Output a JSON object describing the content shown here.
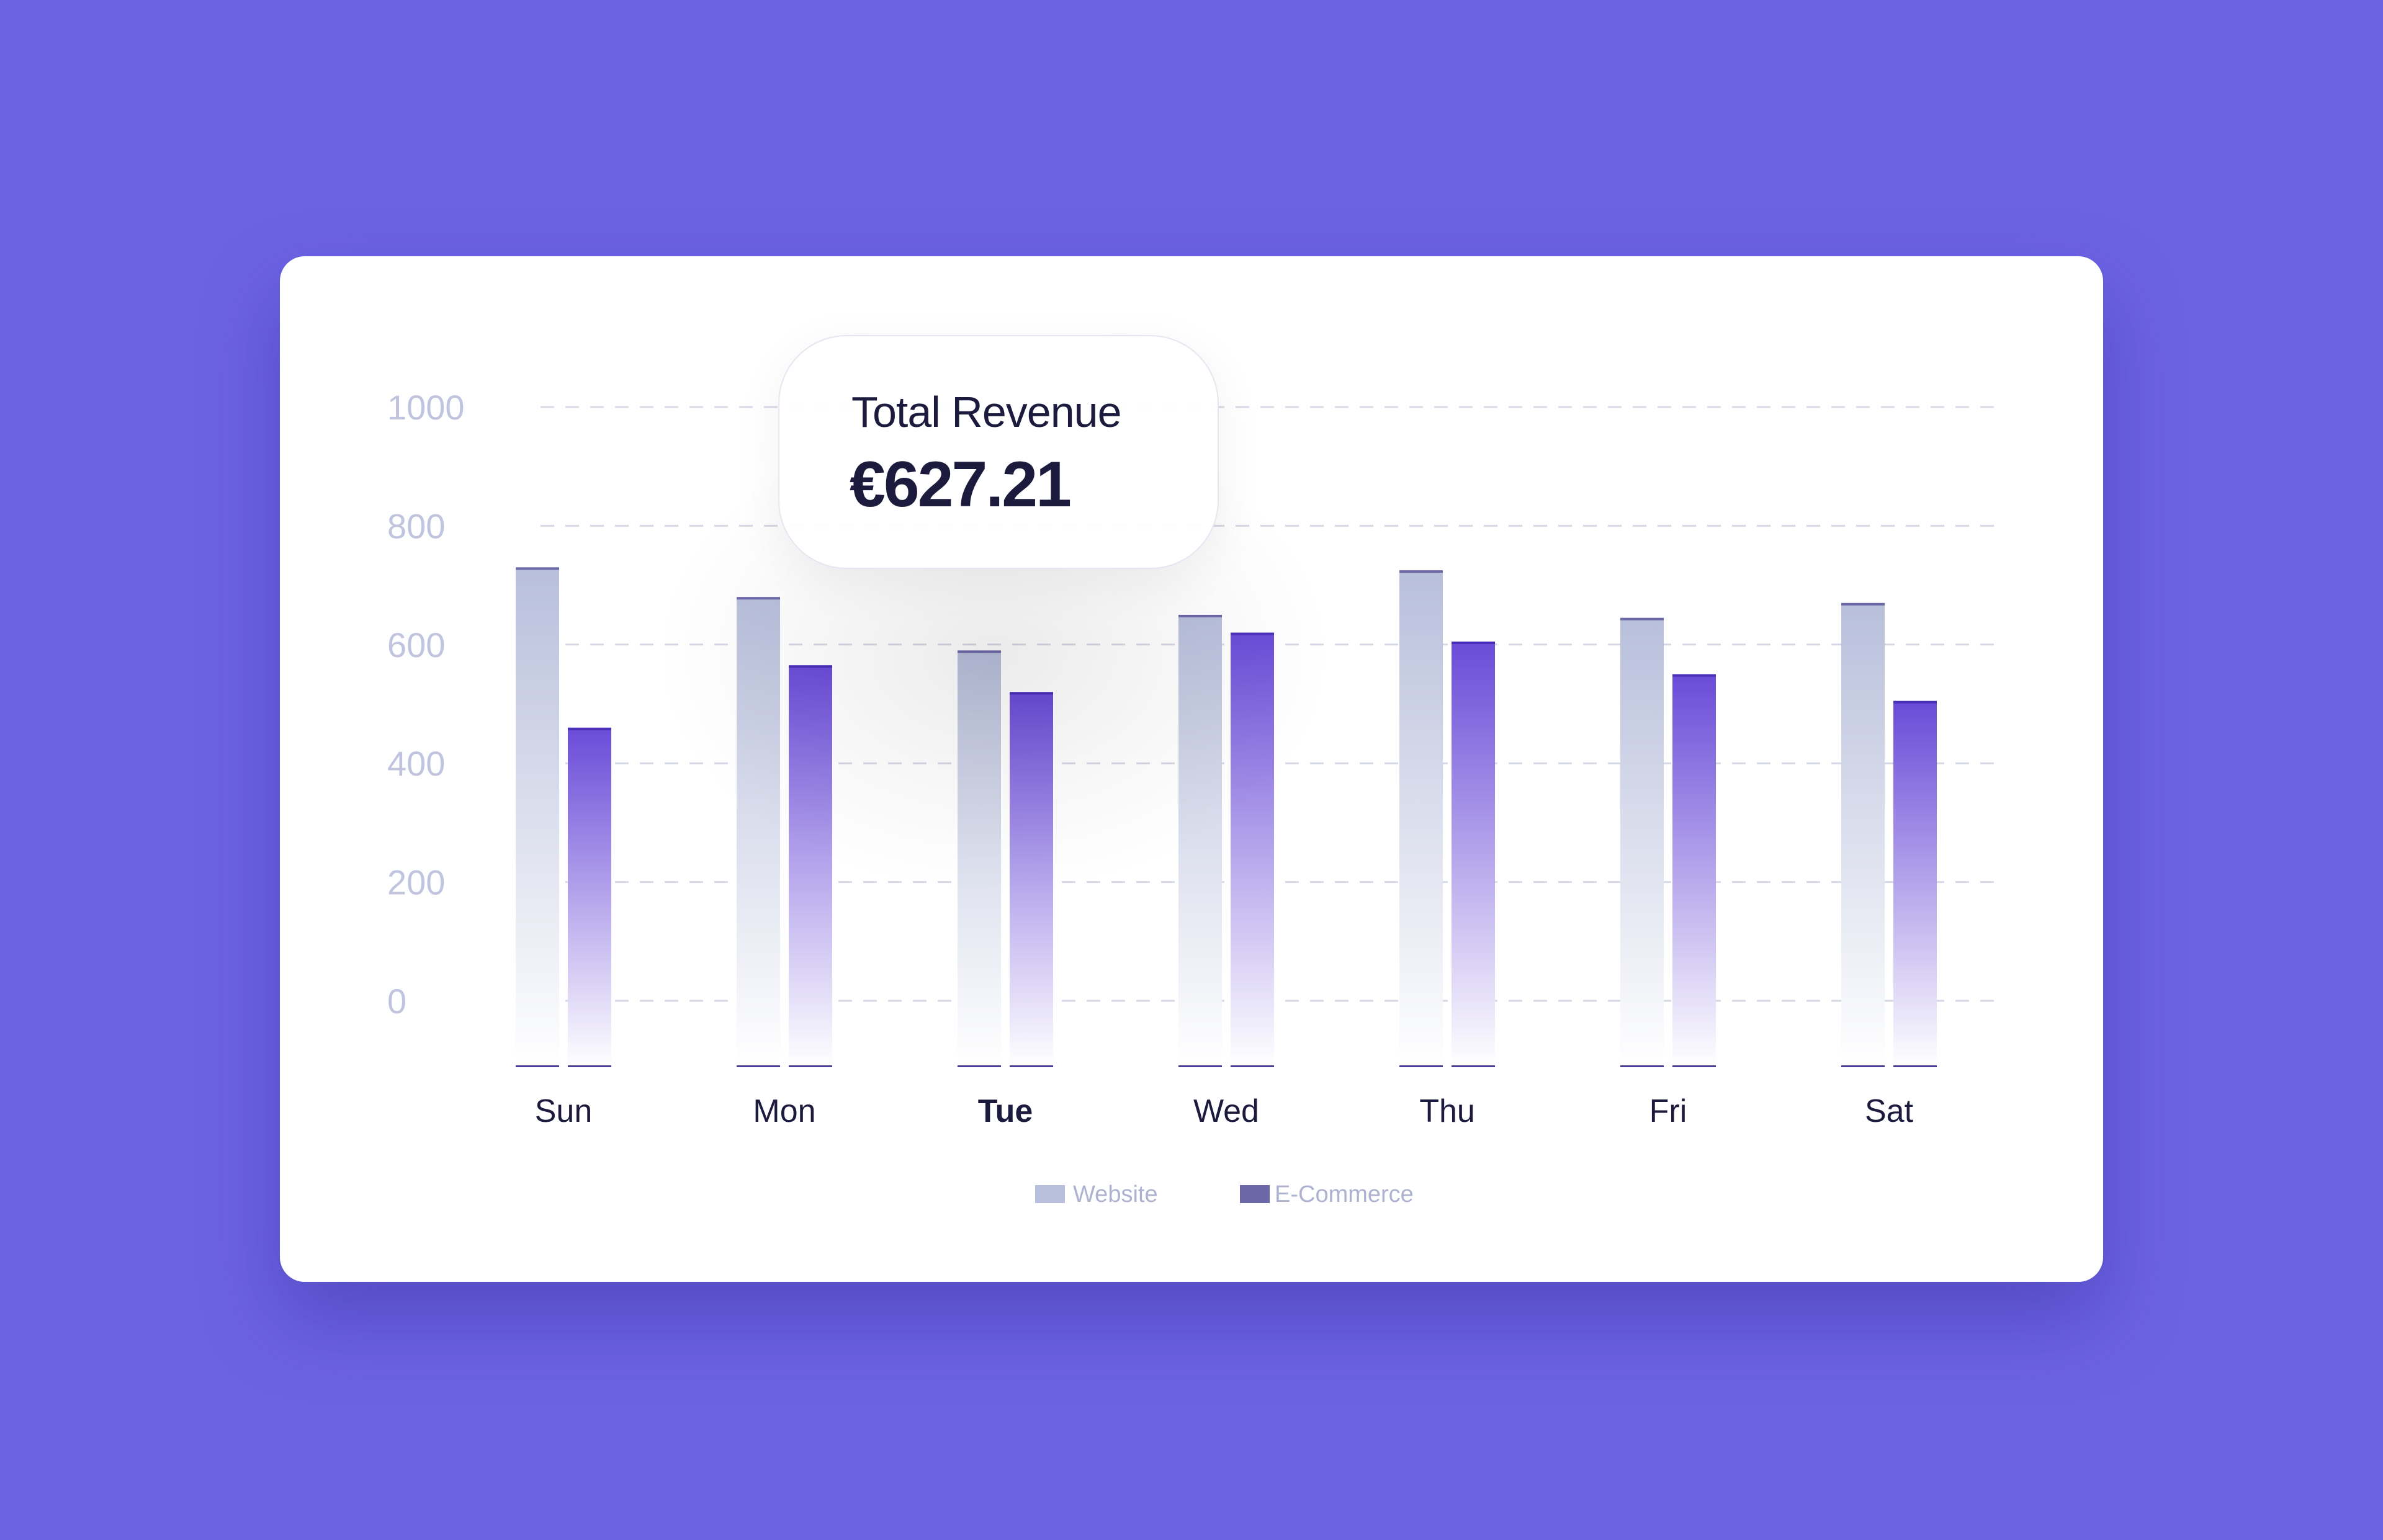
{
  "tooltip": {
    "label": "Total Revenue",
    "value": "€627.21"
  },
  "chart_data": {
    "type": "bar",
    "categories": [
      "Sun",
      "Mon",
      "Tue",
      "Wed",
      "Thu",
      "Fri",
      "Sat"
    ],
    "highlighted_category": "Tue",
    "series": [
      {
        "name": "Website",
        "values": [
          730,
          680,
          590,
          650,
          725,
          645,
          670
        ],
        "color": "#b8bfdb"
      },
      {
        "name": "E-Commerce",
        "values": [
          460,
          565,
          520,
          620,
          605,
          550,
          505
        ],
        "color": "#6a4bd8"
      }
    ],
    "yticks": [
      0,
      200,
      400,
      600,
      800,
      1000
    ],
    "ylim": [
      0,
      1000
    ],
    "grid": "dashed horizontal",
    "legend_position": "bottom-center",
    "legend_colors": [
      "#b8bfdb",
      "#6c68a8"
    ]
  }
}
